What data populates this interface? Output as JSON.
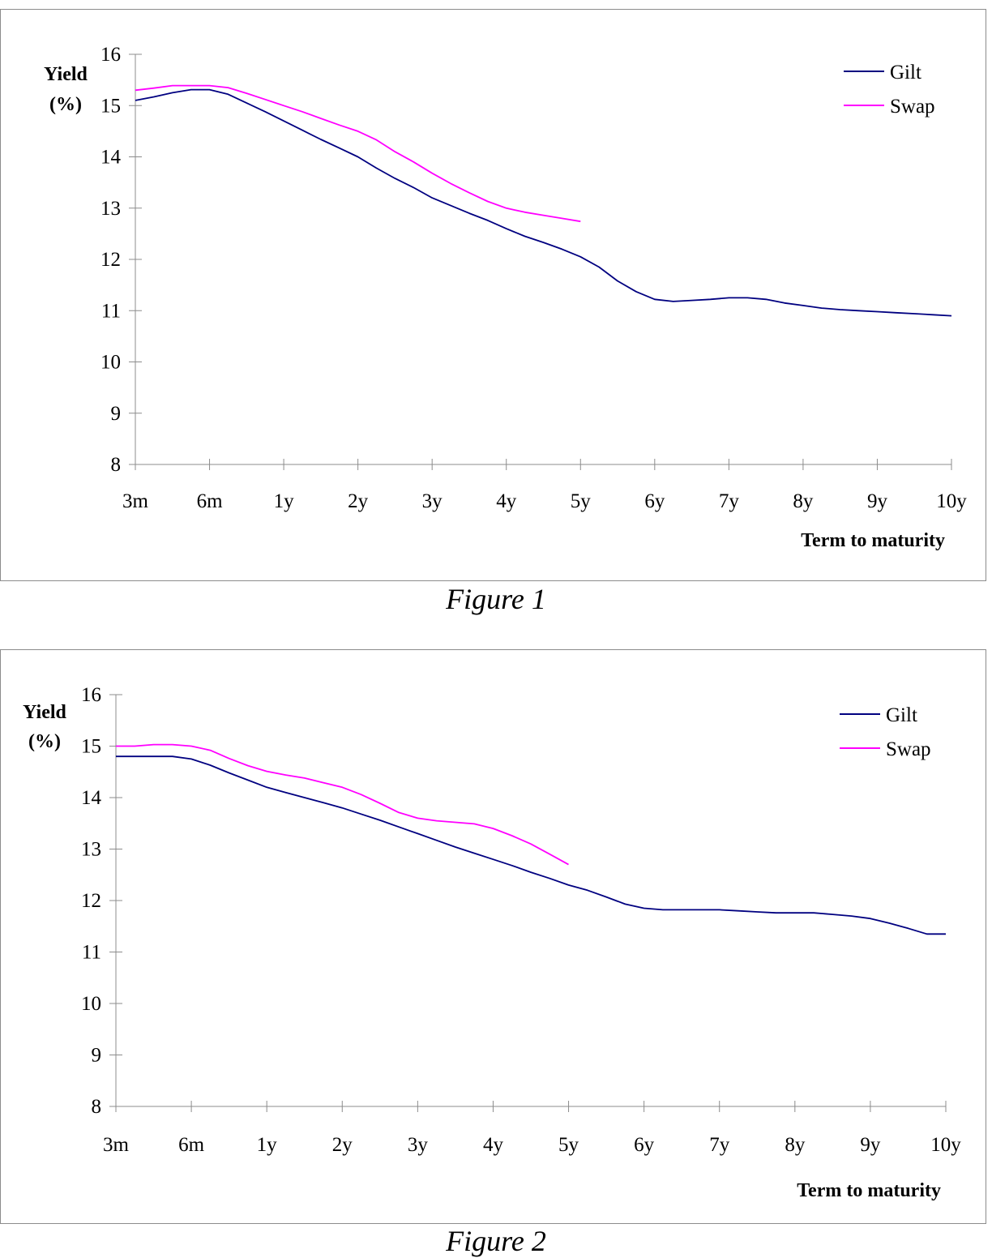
{
  "chart_data": [
    {
      "type": "line",
      "caption": "Figure 1",
      "ylabel": [
        "Yield",
        "(%)"
      ],
      "xlabel": "Term to maturity",
      "ylim": [
        8,
        16
      ],
      "yticks": [
        8,
        9,
        10,
        11,
        12,
        13,
        14,
        15,
        16
      ],
      "xcategories": [
        "3m",
        "6m",
        "1y",
        "2y",
        "3y",
        "4y",
        "5y",
        "6y",
        "7y",
        "8y",
        "9y",
        "10y"
      ],
      "grid": false,
      "legend_position": "top-right",
      "series": [
        {
          "name": "Gilt",
          "color": "#000080",
          "x": [
            0,
            0.25,
            0.5,
            0.75,
            1,
            1.25,
            1.5,
            1.75,
            2,
            2.25,
            2.5,
            2.75,
            3,
            3.25,
            3.5,
            3.75,
            4,
            4.25,
            4.5,
            4.75,
            5,
            5.25,
            5.5,
            5.75,
            6,
            6.25,
            6.5,
            6.75,
            7,
            7.25,
            7.5,
            7.75,
            8,
            8.25,
            8.5,
            8.75,
            9,
            9.25,
            9.5,
            9.75,
            10,
            10.25,
            10.5,
            10.75,
            11
          ],
          "y": [
            15.1,
            15.17,
            15.25,
            15.31,
            15.31,
            15.22,
            15.05,
            14.88,
            14.7,
            14.52,
            14.34,
            14.17,
            14.0,
            13.78,
            13.58,
            13.4,
            13.2,
            13.05,
            12.9,
            12.76,
            12.6,
            12.45,
            12.33,
            12.2,
            12.05,
            11.85,
            11.58,
            11.37,
            11.22,
            11.18,
            11.2,
            11.22,
            11.25,
            11.25,
            11.22,
            11.15,
            11.1,
            11.05,
            11.02,
            11.0,
            10.98,
            10.96,
            10.94,
            10.92,
            10.9
          ]
        },
        {
          "name": "Swap",
          "color": "#ff00ff",
          "x": [
            0,
            0.25,
            0.5,
            0.75,
            1,
            1.25,
            1.5,
            1.75,
            2,
            2.25,
            2.5,
            2.75,
            3,
            3.25,
            3.5,
            3.75,
            4,
            4.25,
            4.5,
            4.75,
            5,
            5.25,
            5.5,
            5.75,
            6
          ],
          "y": [
            15.3,
            15.34,
            15.39,
            15.39,
            15.39,
            15.35,
            15.24,
            15.12,
            15.0,
            14.88,
            14.75,
            14.62,
            14.5,
            14.33,
            14.1,
            13.9,
            13.68,
            13.48,
            13.3,
            13.13,
            13.0,
            12.92,
            12.86,
            12.8,
            12.74
          ]
        }
      ]
    },
    {
      "type": "line",
      "caption": "Figure 2",
      "ylabel": [
        "Yield",
        "(%)"
      ],
      "xlabel": "Term to maturity",
      "ylim": [
        8,
        16
      ],
      "yticks": [
        8,
        9,
        10,
        11,
        12,
        13,
        14,
        15,
        16
      ],
      "xcategories": [
        "3m",
        "6m",
        "1y",
        "2y",
        "3y",
        "4y",
        "5y",
        "6y",
        "7y",
        "8y",
        "9y",
        "10y"
      ],
      "grid": false,
      "legend_position": "top-right",
      "series": [
        {
          "name": "Gilt",
          "color": "#000080",
          "x": [
            0,
            0.25,
            0.5,
            0.75,
            1,
            1.25,
            1.5,
            1.75,
            2,
            2.25,
            2.5,
            2.75,
            3,
            3.25,
            3.5,
            3.75,
            4,
            4.25,
            4.5,
            4.75,
            5,
            5.25,
            5.5,
            5.75,
            6,
            6.25,
            6.5,
            6.75,
            7,
            7.25,
            7.5,
            7.75,
            8,
            8.25,
            8.5,
            8.75,
            9,
            9.25,
            9.5,
            9.75,
            10,
            10.25,
            10.5,
            10.75,
            11
          ],
          "y": [
            14.8,
            14.8,
            14.8,
            14.8,
            14.75,
            14.63,
            14.48,
            14.34,
            14.2,
            14.1,
            14.0,
            13.9,
            13.8,
            13.68,
            13.56,
            13.43,
            13.3,
            13.17,
            13.04,
            12.92,
            12.8,
            12.68,
            12.55,
            12.43,
            12.3,
            12.2,
            12.07,
            11.93,
            11.85,
            11.82,
            11.82,
            11.82,
            11.82,
            11.8,
            11.78,
            11.76,
            11.76,
            11.76,
            11.73,
            11.7,
            11.65,
            11.56,
            11.46,
            11.35,
            11.35
          ]
        },
        {
          "name": "Swap",
          "color": "#ff00ff",
          "x": [
            0,
            0.25,
            0.5,
            0.75,
            1,
            1.25,
            1.5,
            1.75,
            2,
            2.25,
            2.5,
            2.75,
            3,
            3.25,
            3.5,
            3.75,
            4,
            4.25,
            4.5,
            4.75,
            5,
            5.25,
            5.5,
            5.75,
            6
          ],
          "y": [
            15.0,
            15.0,
            15.03,
            15.03,
            15.0,
            14.92,
            14.76,
            14.62,
            14.51,
            14.44,
            14.38,
            14.29,
            14.2,
            14.06,
            13.89,
            13.71,
            13.6,
            13.55,
            13.52,
            13.49,
            13.4,
            13.26,
            13.1,
            12.9,
            12.7
          ]
        }
      ]
    }
  ]
}
